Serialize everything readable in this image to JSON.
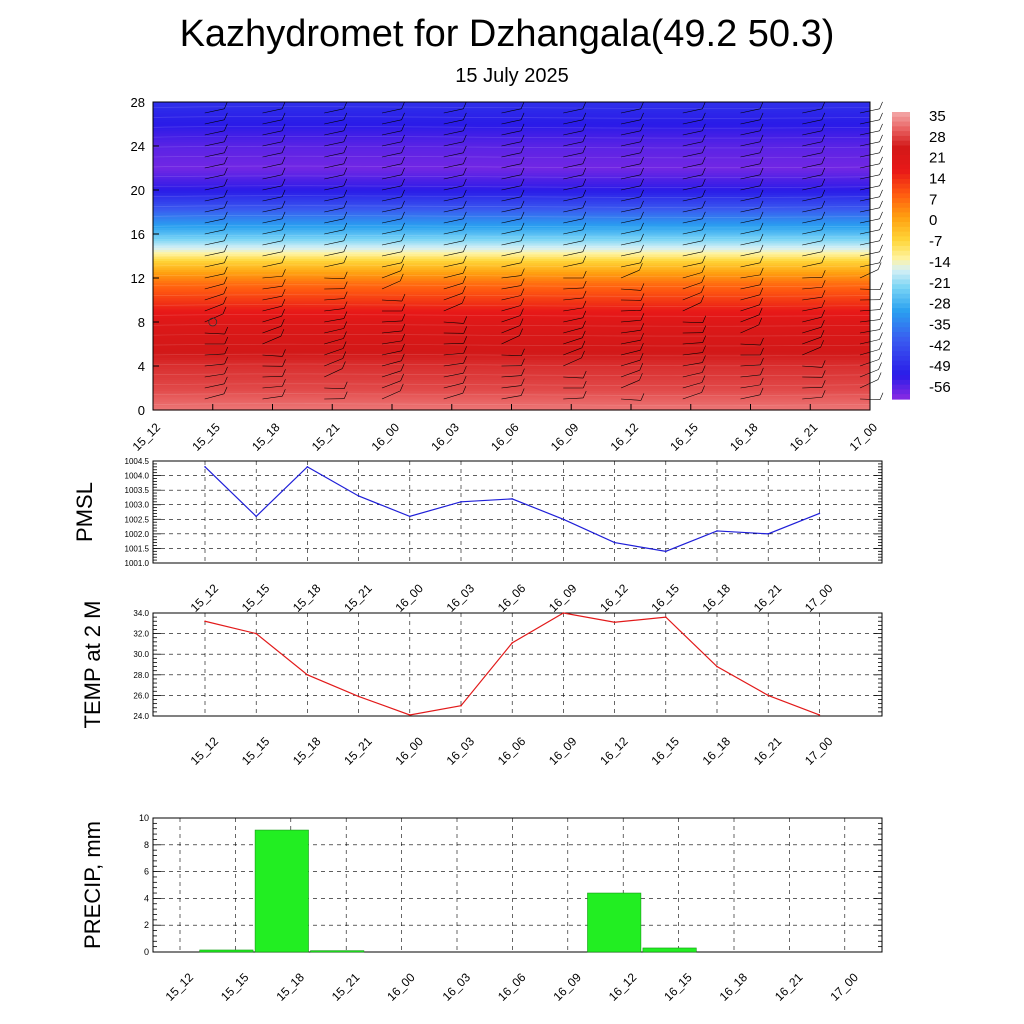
{
  "title": "Kazhydromet for Dzhangala(49.2 50.3)",
  "subtitle": "15 July 2025",
  "colors": {
    "pmsl_line": "#1f1fd8",
    "temp_line": "#e21a1a",
    "precip_bar": "#22ee22",
    "precip_bar_edge": "#119911"
  },
  "chart_data": [
    {
      "type": "heatmap",
      "title": "",
      "xlabel": "",
      "ylabel": "",
      "x": [
        "15_12",
        "15_15",
        "15_18",
        "15_21",
        "16_00",
        "16_03",
        "16_06",
        "16_09",
        "16_12",
        "16_15",
        "16_18",
        "16_21",
        "17_00"
      ],
      "y_ticks": [
        0,
        4,
        8,
        12,
        16,
        20,
        24,
        28
      ],
      "ylim": [
        0,
        28
      ],
      "colorbar_ticks": [
        35,
        28,
        21,
        14,
        7,
        0,
        -7,
        -14,
        -21,
        -28,
        -35,
        -42,
        -49,
        -56
      ],
      "colorbar_range": [
        -60,
        38
      ],
      "temperature_profile": [
        {
          "level": 0,
          "value": 34
        },
        {
          "level": 2,
          "value": 30
        },
        {
          "level": 4,
          "value": 28
        },
        {
          "level": 6,
          "value": 25
        },
        {
          "level": 8,
          "value": 22
        },
        {
          "level": 10,
          "value": 14
        },
        {
          "level": 11.5,
          "value": 8
        },
        {
          "level": 12.5,
          "value": 2
        },
        {
          "level": 13.5,
          "value": -5
        },
        {
          "level": 14.5,
          "value": -14
        },
        {
          "level": 16,
          "value": -25
        },
        {
          "level": 18,
          "value": -38
        },
        {
          "level": 20,
          "value": -52
        },
        {
          "level": 22,
          "value": -58
        },
        {
          "level": 24,
          "value": -56
        },
        {
          "level": 26,
          "value": -52
        },
        {
          "level": 28,
          "value": -48
        }
      ],
      "wind_barbs": true
    },
    {
      "type": "line",
      "title": "",
      "ylabel": "PMSL",
      "xlabel": "",
      "categories": [
        "15_12",
        "15_15",
        "15_18",
        "15_21",
        "16_00",
        "16_03",
        "16_06",
        "16_09",
        "16_12",
        "16_15",
        "16_18",
        "16_21",
        "17_00"
      ],
      "values": [
        1004.3,
        1002.6,
        1004.3,
        1003.3,
        1002.6,
        1003.1,
        1003.2,
        1002.5,
        1001.7,
        1001.4,
        1002.1,
        1002.0,
        1002.7
      ],
      "ylim": [
        1001.0,
        1004.5
      ],
      "y_ticks": [
        "1001.0",
        "1001.5",
        "1002.0",
        "1002.5",
        "1003.0",
        "1003.5",
        "1004.0",
        "1004.5"
      ],
      "grid": true
    },
    {
      "type": "line",
      "title": "",
      "ylabel": "TEMP at 2 M",
      "xlabel": "",
      "categories": [
        "15_12",
        "15_15",
        "15_18",
        "15_21",
        "16_00",
        "16_03",
        "16_06",
        "16_09",
        "16_12",
        "16_15",
        "16_18",
        "16_21",
        "17_00"
      ],
      "values": [
        33.2,
        32.0,
        28.0,
        25.9,
        24.1,
        25.0,
        31.1,
        34.0,
        33.1,
        33.6,
        28.8,
        26.0,
        24.1
      ],
      "ylim": [
        24.0,
        34.0
      ],
      "y_ticks": [
        "24.0",
        "26.0",
        "28.0",
        "30.0",
        "32.0",
        "34.0"
      ],
      "grid": true
    },
    {
      "type": "bar",
      "title": "",
      "ylabel": "PRECIP, mm",
      "xlabel": "",
      "categories": [
        "15_12",
        "15_15",
        "15_18",
        "15_21",
        "16_00",
        "16_03",
        "16_06",
        "16_09",
        "16_12",
        "16_15",
        "16_18",
        "16_21",
        "17_00"
      ],
      "values": [
        0,
        0.15,
        9.1,
        0.1,
        0,
        0,
        0,
        0,
        4.4,
        0.3,
        0,
        0,
        0
      ],
      "ylim": [
        0,
        10
      ],
      "y_ticks": [
        "0",
        "2",
        "4",
        "6",
        "8",
        "10"
      ],
      "grid": true
    }
  ]
}
